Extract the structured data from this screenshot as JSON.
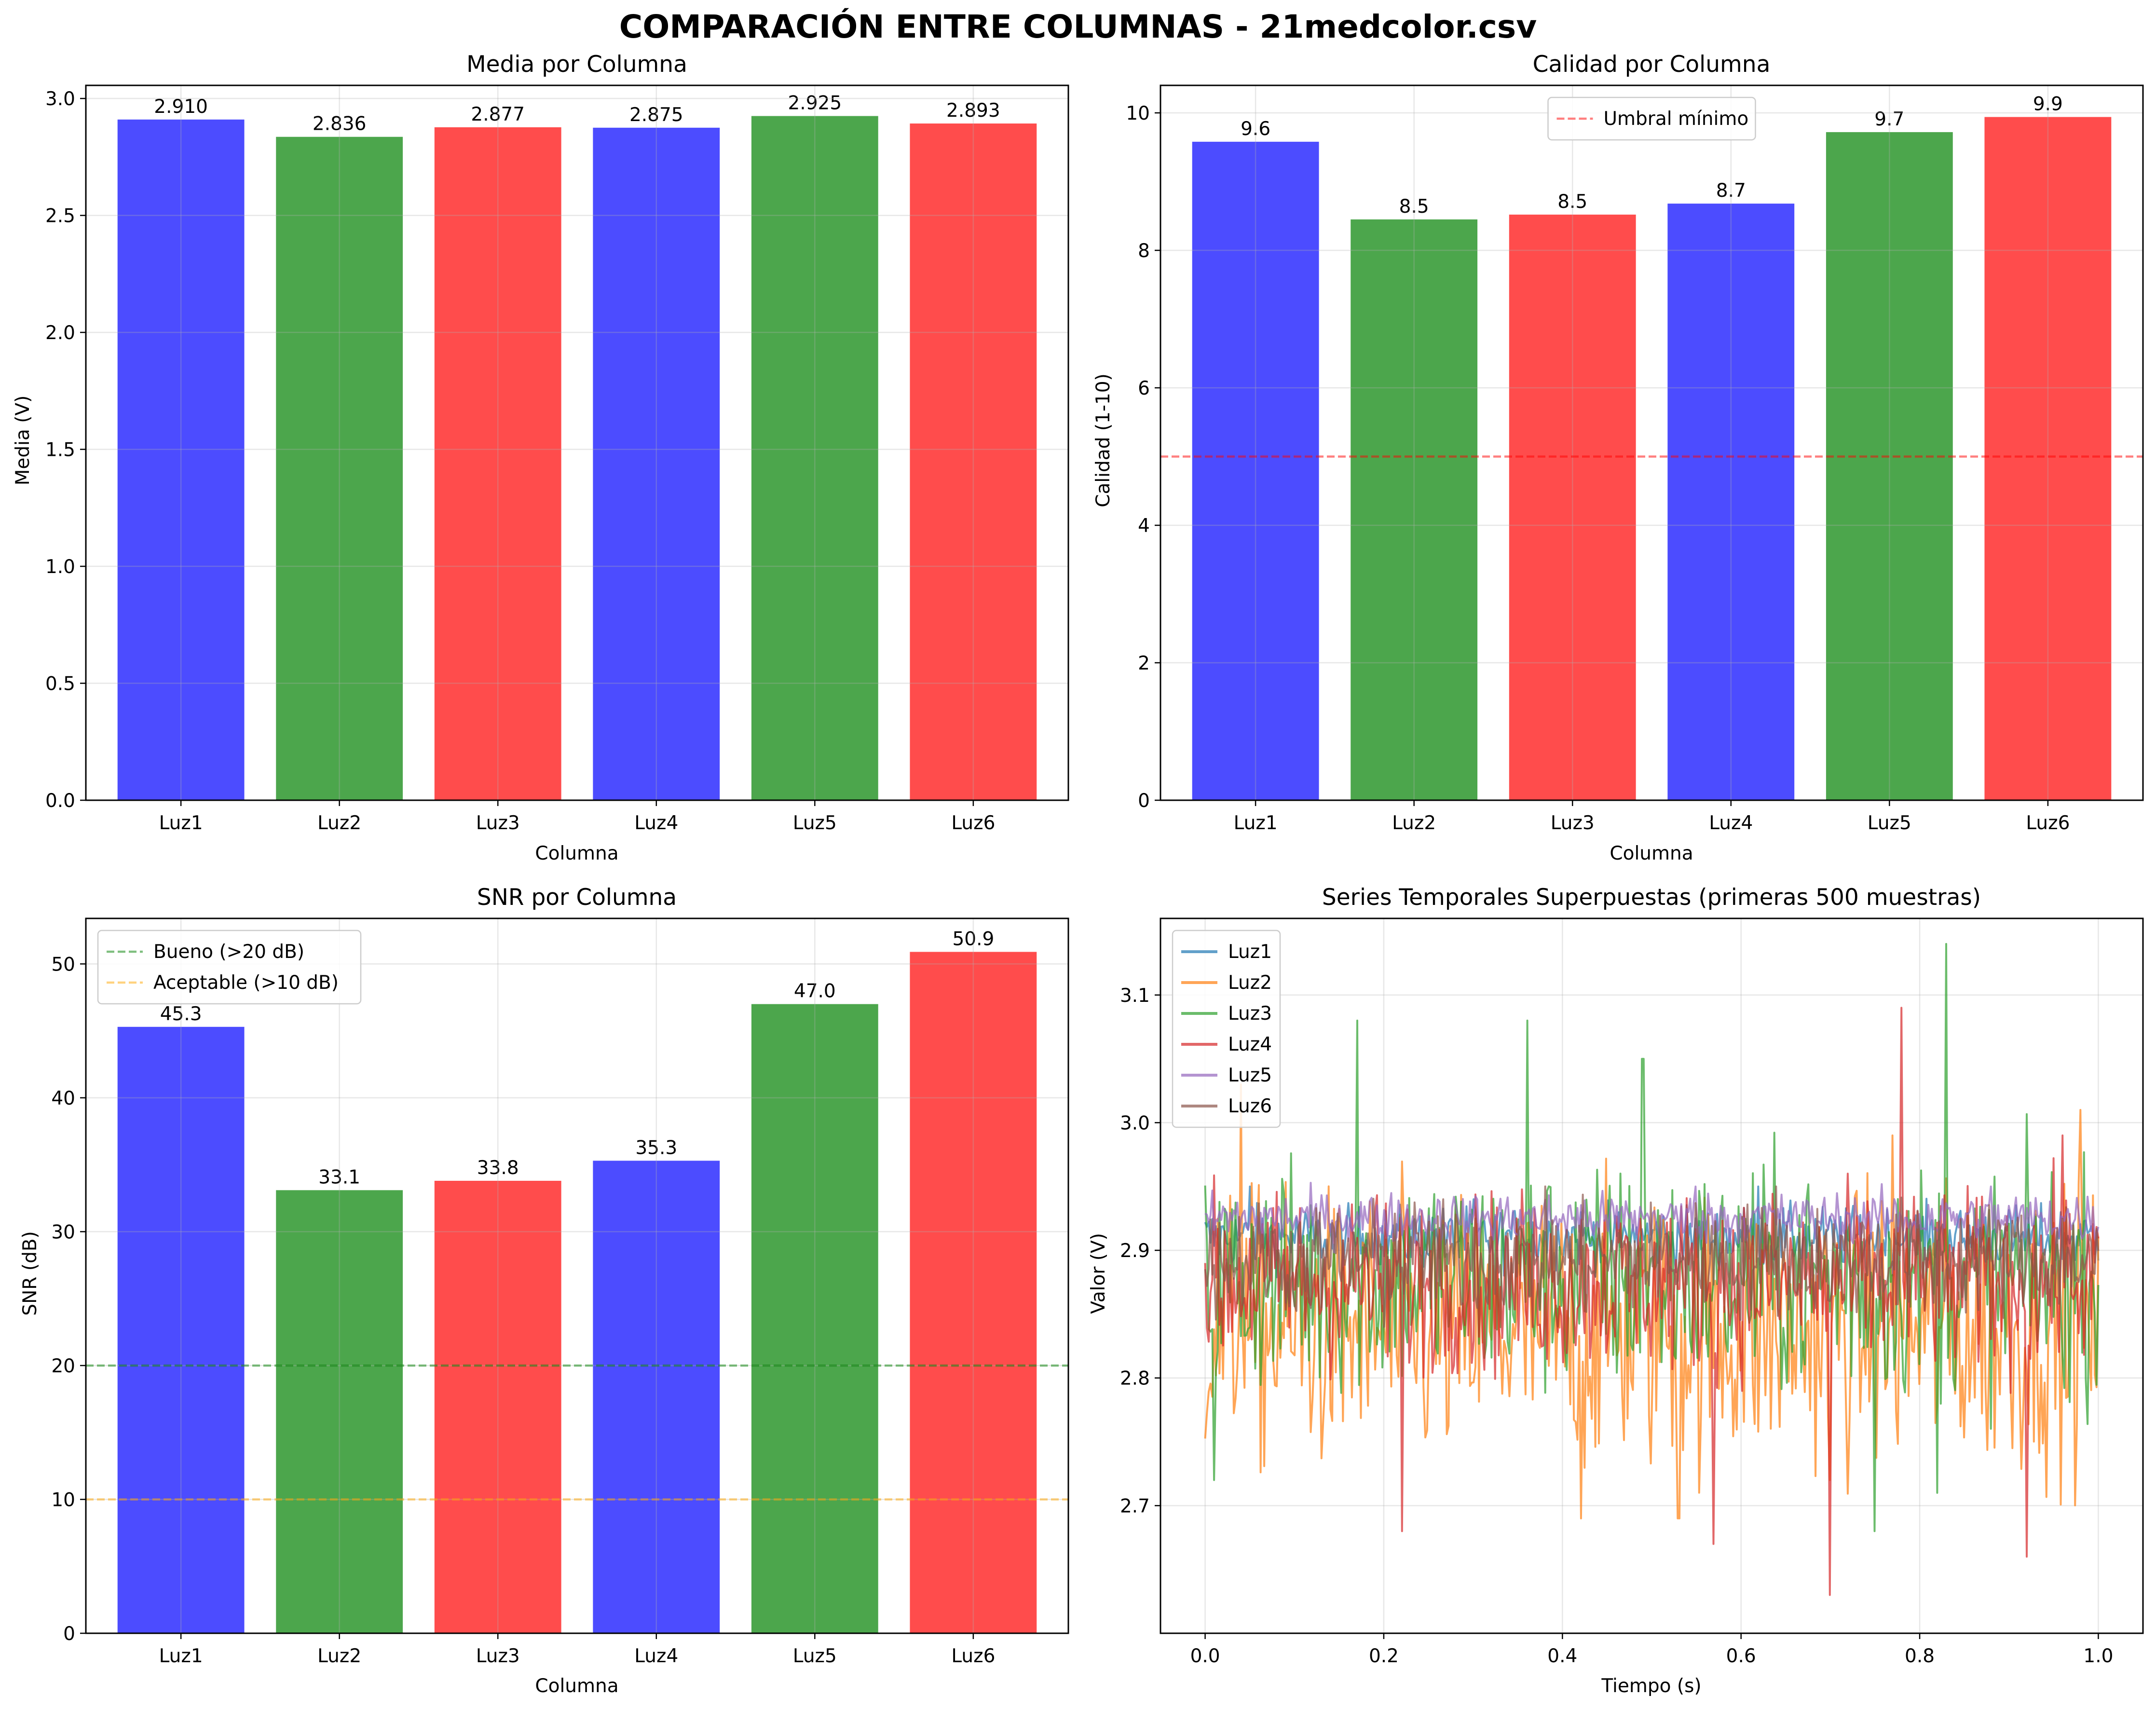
{
  "title": "COMPARACIÓN ENTRE COLUMNAS - 21medcolor.csv",
  "colors": {
    "blue": "#0000ff",
    "green": "#008000",
    "red": "#ff0000",
    "orange": "#ffa500",
    "grid": "#b0b0b0"
  },
  "chart_data": [
    {
      "id": "media",
      "type": "bar",
      "title": "Media por Columna",
      "xlabel": "Columna",
      "ylabel": "Media (V)",
      "categories": [
        "Luz1",
        "Luz2",
        "Luz3",
        "Luz4",
        "Luz5",
        "Luz6"
      ],
      "values": [
        2.91,
        2.836,
        2.877,
        2.875,
        2.925,
        2.893
      ],
      "value_labels": [
        "2.910",
        "2.836",
        "2.877",
        "2.875",
        "2.925",
        "2.893"
      ],
      "bar_colors": [
        "#0000ff",
        "#008000",
        "#ff0000",
        "#0000ff",
        "#008000",
        "#ff0000"
      ],
      "ylim": [
        0,
        3.056
      ],
      "yticks": [
        0.0,
        0.5,
        1.0,
        1.5,
        2.0,
        2.5,
        3.0
      ],
      "ytick_labels": [
        "0.0",
        "0.5",
        "1.0",
        "1.5",
        "2.0",
        "2.5",
        "3.0"
      ],
      "grid": true
    },
    {
      "id": "calidad",
      "type": "bar",
      "title": "Calidad por Columna",
      "xlabel": "Columna",
      "ylabel": "Calidad (1-10)",
      "categories": [
        "Luz1",
        "Luz2",
        "Luz3",
        "Luz4",
        "Luz5",
        "Luz6"
      ],
      "values": [
        9.58,
        8.45,
        8.52,
        8.68,
        9.72,
        9.94
      ],
      "value_labels": [
        "9.6",
        "8.5",
        "8.5",
        "8.7",
        "9.7",
        "9.9"
      ],
      "bar_colors": [
        "#0000ff",
        "#008000",
        "#ff0000",
        "#0000ff",
        "#008000",
        "#ff0000"
      ],
      "ylim": [
        0,
        10.4
      ],
      "yticks": [
        0,
        2,
        4,
        6,
        8,
        10
      ],
      "ytick_labels": [
        "0",
        "2",
        "4",
        "6",
        "8",
        "10"
      ],
      "hlines": [
        {
          "y": 5,
          "color": "#ff0000",
          "label": "Umbral mínimo"
        }
      ],
      "legend": "upper-center",
      "grid": true
    },
    {
      "id": "snr",
      "type": "bar",
      "title": "SNR por Columna",
      "xlabel": "Columna",
      "ylabel": "SNR (dB)",
      "categories": [
        "Luz1",
        "Luz2",
        "Luz3",
        "Luz4",
        "Luz5",
        "Luz6"
      ],
      "values": [
        45.3,
        33.1,
        33.8,
        35.3,
        47.0,
        50.9
      ],
      "value_labels": [
        "45.3",
        "33.1",
        "33.8",
        "35.3",
        "47.0",
        "50.9"
      ],
      "bar_colors": [
        "#0000ff",
        "#008000",
        "#ff0000",
        "#0000ff",
        "#008000",
        "#ff0000"
      ],
      "ylim": [
        0,
        53.4
      ],
      "yticks": [
        0,
        10,
        20,
        30,
        40,
        50
      ],
      "ytick_labels": [
        "0",
        "10",
        "20",
        "30",
        "40",
        "50"
      ],
      "hlines": [
        {
          "y": 20,
          "color": "#008000",
          "label": "Bueno (>20 dB)"
        },
        {
          "y": 10,
          "color": "#ffa500",
          "label": "Aceptable (>10 dB)"
        }
      ],
      "legend": "upper-left",
      "grid": true
    },
    {
      "id": "series",
      "type": "line",
      "title": "Series Temporales Superpuestas (primeras 500 muestras)",
      "xlabel": "Tiempo (s)",
      "ylabel": "Valor (V)",
      "xlim": [
        -0.05,
        1.05
      ],
      "ylim": [
        2.6,
        3.16
      ],
      "xticks": [
        0.0,
        0.2,
        0.4,
        0.6,
        0.8,
        1.0
      ],
      "xtick_labels": [
        "0.0",
        "0.2",
        "0.4",
        "0.6",
        "0.8",
        "1.0"
      ],
      "yticks": [
        2.7,
        2.8,
        2.9,
        3.0,
        3.1
      ],
      "ytick_labels": [
        "2.7",
        "2.8",
        "2.9",
        "3.0",
        "3.1"
      ],
      "samples": 500,
      "x_range": [
        0,
        1
      ],
      "legend": "upper-left",
      "grid": true,
      "series": [
        {
          "name": "Luz1",
          "color": "#1f77b4",
          "mean": 2.91,
          "spread": 0.012,
          "spikes": [
            [
              0.05,
              2.95
            ],
            [
              0.3,
              2.94
            ],
            [
              0.62,
              2.95
            ]
          ]
        },
        {
          "name": "Luz2",
          "color": "#ff7f0e",
          "mean": 2.836,
          "spread": 0.055,
          "spikes": [
            [
              0.04,
              3.03
            ],
            [
              0.42,
              2.69
            ],
            [
              0.53,
              2.69
            ],
            [
              0.7,
              2.72
            ],
            [
              0.98,
              3.01
            ],
            [
              0.77,
              2.99
            ]
          ]
        },
        {
          "name": "Luz3",
          "color": "#2ca02c",
          "mean": 2.877,
          "spread": 0.045,
          "spikes": [
            [
              0.17,
              3.08
            ],
            [
              0.36,
              3.08
            ],
            [
              0.49,
              3.05
            ],
            [
              0.83,
              3.14
            ],
            [
              0.75,
              2.68
            ],
            [
              0.01,
              2.72
            ],
            [
              0.82,
              2.71
            ]
          ]
        },
        {
          "name": "Luz4",
          "color": "#d62728",
          "mean": 2.875,
          "spread": 0.035,
          "spikes": [
            [
              0.7,
              2.63
            ],
            [
              0.78,
              3.09
            ],
            [
              0.22,
              2.68
            ],
            [
              0.57,
              2.67
            ],
            [
              0.92,
              2.66
            ],
            [
              0.96,
              2.99
            ]
          ]
        },
        {
          "name": "Luz5",
          "color": "#9467bd",
          "mean": 2.925,
          "spread": 0.01,
          "spikes": [
            [
              0.55,
              2.95
            ],
            [
              0.88,
              2.95
            ]
          ]
        },
        {
          "name": "Luz6",
          "color": "#8c564b",
          "mean": 2.893,
          "spread": 0.022,
          "spikes": [
            [
              0.2,
              2.84
            ],
            [
              0.64,
              2.95
            ]
          ]
        }
      ]
    }
  ]
}
